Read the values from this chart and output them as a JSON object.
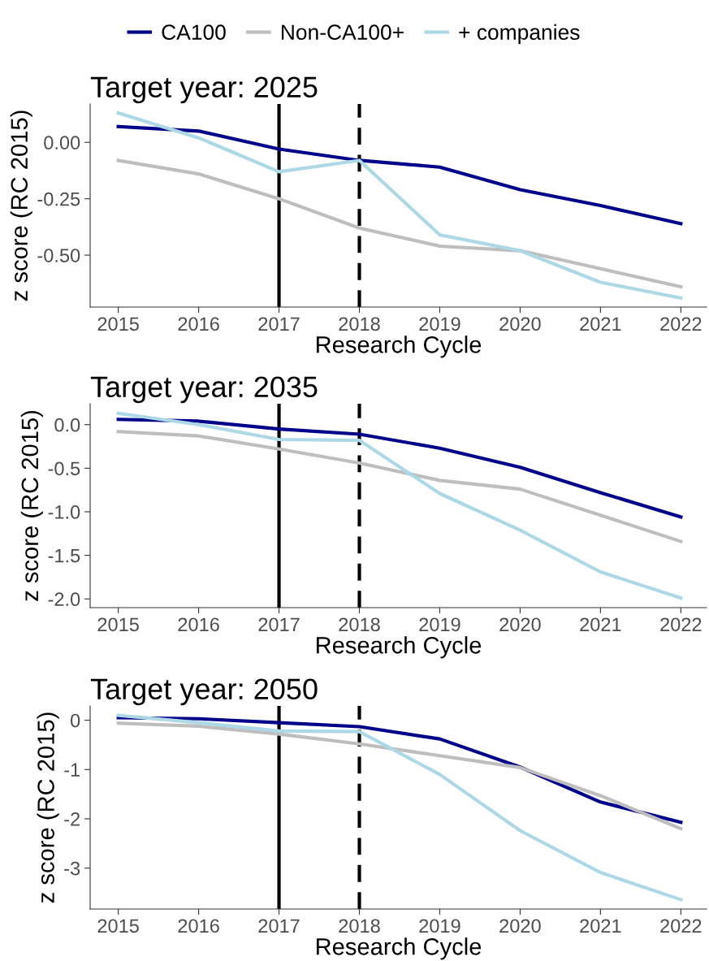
{
  "chart_data": [
    {
      "type": "line",
      "title": "Target year: 2025",
      "xlabel": "Research Cycle",
      "ylabel": "z score (RC 2015)",
      "legend": "top",
      "grid": false,
      "line_style": "solid",
      "marker": "none",
      "x": [
        2015,
        2016,
        2017,
        2018,
        2019,
        2020,
        2021,
        2022
      ],
      "xlim": [
        2014.65,
        2022.32
      ],
      "xticks": [
        2015,
        2016,
        2017,
        2018,
        2019,
        2020,
        2021,
        2022
      ],
      "ylim": [
        -0.73,
        0.17
      ],
      "yticks": [
        {
          "value": 0,
          "label": "0.00"
        },
        {
          "value": -0.25,
          "label": "-0.25"
        },
        {
          "value": -0.5,
          "label": "-0.50"
        }
      ],
      "ref_lines": [
        {
          "axis": "x",
          "value": 2017,
          "label": null,
          "color": "#000000",
          "line_style": "solid"
        },
        {
          "axis": "x",
          "value": 2018,
          "label": null,
          "color": "#000000",
          "line_style": "dashed"
        }
      ],
      "series": [
        {
          "name": "CA100",
          "color": "#00008b",
          "values": [
            0.07,
            0.05,
            -0.03,
            -0.08,
            -0.11,
            -0.21,
            -0.28,
            -0.36
          ]
        },
        {
          "name": "Non-CA100+",
          "color": "#bebebe",
          "values": [
            -0.08,
            -0.14,
            -0.25,
            -0.38,
            -0.46,
            -0.48,
            -0.56,
            -0.64
          ]
        },
        {
          "name": "+ companies",
          "color": "#add8e6",
          "values": [
            0.13,
            0.02,
            -0.13,
            -0.08,
            -0.41,
            -0.48,
            -0.62,
            -0.69
          ]
        }
      ]
    },
    {
      "type": "line",
      "title": "Target year: 2035",
      "xlabel": "Research Cycle",
      "ylabel": "z score (RC 2015)",
      "grid": false,
      "line_style": "solid",
      "marker": "none",
      "x": [
        2015,
        2016,
        2017,
        2018,
        2019,
        2020,
        2021,
        2022
      ],
      "xlim": [
        2014.65,
        2022.32
      ],
      "xticks": [
        2015,
        2016,
        2017,
        2018,
        2019,
        2020,
        2021,
        2022
      ],
      "ylim": [
        -2.1,
        0.24
      ],
      "yticks": [
        {
          "value": 0,
          "label": "0.0"
        },
        -0.5,
        {
          "value": -1,
          "label": "-1.0"
        },
        -1.5,
        {
          "value": -2,
          "label": "-2.0"
        }
      ],
      "ref_lines": [
        {
          "axis": "x",
          "value": 2017,
          "label": null,
          "color": "#000000",
          "line_style": "solid"
        },
        {
          "axis": "x",
          "value": 2018,
          "label": null,
          "color": "#000000",
          "line_style": "dashed"
        }
      ],
      "series": [
        {
          "color": "#00008b",
          "values": [
            0.06,
            0.04,
            -0.05,
            -0.11,
            -0.27,
            -0.49,
            -0.78,
            -1.06
          ]
        },
        {
          "color": "#bebebe",
          "values": [
            -0.08,
            -0.13,
            -0.28,
            -0.44,
            -0.64,
            -0.74,
            -1.04,
            -1.34
          ]
        },
        {
          "color": "#add8e6",
          "values": [
            0.13,
            0.0,
            -0.17,
            -0.18,
            -0.79,
            -1.21,
            -1.69,
            -1.99
          ]
        }
      ]
    },
    {
      "type": "line",
      "title": "Target year: 2050",
      "xlabel": "Research Cycle",
      "ylabel": "z score (RC 2015)",
      "grid": false,
      "line_style": "solid",
      "marker": "none",
      "x": [
        2015,
        2016,
        2017,
        2018,
        2019,
        2020,
        2021,
        2022
      ],
      "xlim": [
        2014.65,
        2022.32
      ],
      "xticks": [
        2015,
        2016,
        2017,
        2018,
        2019,
        2020,
        2021,
        2022
      ],
      "ylim": [
        -3.83,
        0.29
      ],
      "yticks": [
        0,
        -1,
        -2,
        -3
      ],
      "ref_lines": [
        {
          "axis": "x",
          "value": 2017,
          "label": null,
          "color": "#000000",
          "line_style": "solid"
        },
        {
          "axis": "x",
          "value": 2018,
          "label": null,
          "color": "#000000",
          "line_style": "dashed"
        }
      ],
      "series": [
        {
          "color": "#00008b",
          "values": [
            0.05,
            0.03,
            -0.05,
            -0.13,
            -0.38,
            -0.95,
            -1.66,
            -2.07
          ]
        },
        {
          "color": "#bebebe",
          "values": [
            -0.06,
            -0.12,
            -0.28,
            -0.48,
            -0.72,
            -0.96,
            -1.53,
            -2.2
          ]
        },
        {
          "color": "#add8e6",
          "values": [
            0.1,
            -0.05,
            -0.22,
            -0.23,
            -1.1,
            -2.24,
            -3.09,
            -3.64
          ]
        }
      ]
    }
  ]
}
